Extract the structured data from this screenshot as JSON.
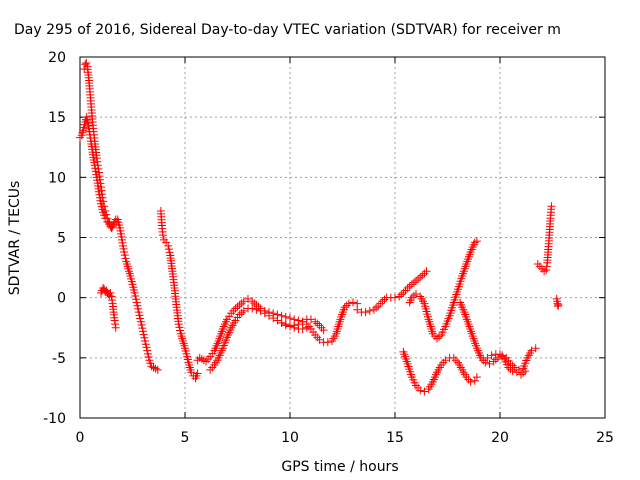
{
  "chart_data": {
    "type": "scatter",
    "title": "Day 295 of 2016, Sidereal Day-to-day VTEC variation (SDTVAR) for receiver m",
    "xlabel": "GPS time / hours",
    "ylabel": "SDTVAR / TECUs",
    "xlim": [
      0,
      25
    ],
    "ylim": [
      -10,
      20
    ],
    "xticks": [
      "0",
      "5",
      "10",
      "15",
      "20",
      "25"
    ],
    "yticks": [
      "-10",
      "-5",
      "0",
      "5",
      "10",
      "15",
      "20"
    ],
    "grid": true,
    "legend": "none",
    "marker": "plus",
    "color": "#ff0000",
    "series": [
      {
        "x": [
          0.0,
          0.08,
          0.15,
          0.25,
          0.32,
          0.38,
          0.45,
          0.52,
          0.6,
          0.7,
          0.8,
          0.9,
          1.0,
          1.1,
          1.2,
          1.3,
          1.4
        ],
        "y": [
          13.3,
          13.5,
          13.9,
          14.6,
          15.0,
          14.5,
          13.8,
          13.0,
          12.1,
          11.0,
          10.0,
          8.8,
          7.8,
          7.1,
          6.6,
          6.3,
          6.2
        ]
      },
      {
        "x": [
          0.2,
          0.25,
          0.3,
          0.35,
          0.4,
          0.45,
          0.5,
          0.55,
          0.6,
          0.65,
          0.7,
          0.75,
          0.8,
          0.85,
          0.9,
          0.95,
          1.0,
          1.05,
          1.1,
          1.15,
          1.2,
          1.25,
          1.3,
          1.35,
          1.4,
          1.45,
          1.5,
          1.55,
          1.6,
          1.65,
          1.7,
          1.75
        ],
        "y": [
          19.0,
          19.4,
          19.5,
          19.2,
          18.5,
          17.6,
          16.6,
          15.6,
          14.6,
          13.8,
          13.0,
          12.3,
          11.6,
          11.0,
          10.4,
          9.8,
          9.2,
          8.6,
          8.0,
          7.6,
          7.2,
          6.9,
          6.6,
          6.3,
          6.1,
          5.9,
          5.8,
          5.9,
          6.1,
          6.3,
          6.5,
          6.3
        ]
      },
      {
        "x": [
          1.0,
          1.05,
          1.1,
          1.15,
          1.2,
          1.25,
          1.3,
          1.35,
          1.4,
          1.45,
          1.5,
          1.55,
          1.6,
          1.65,
          1.7
        ],
        "y": [
          0.4,
          0.6,
          0.8,
          0.7,
          0.5,
          0.6,
          0.4,
          0.3,
          0.2,
          0.4,
          0.1,
          -0.5,
          -1.2,
          -1.9,
          -2.5
        ]
      },
      {
        "x": [
          1.8,
          1.9,
          2.0,
          2.1,
          2.2,
          2.3,
          2.4,
          2.5,
          2.6,
          2.7,
          2.8,
          2.9,
          3.0,
          3.1,
          3.2,
          3.3,
          3.4,
          3.5,
          3.6,
          3.7
        ],
        "y": [
          6.5,
          5.8,
          4.8,
          3.8,
          3.0,
          2.4,
          1.8,
          1.1,
          0.4,
          -0.4,
          -1.2,
          -2.0,
          -2.8,
          -3.6,
          -4.4,
          -5.2,
          -5.7,
          -5.8,
          -5.9,
          -6.0
        ]
      },
      {
        "x": [
          3.85,
          3.9,
          3.95,
          4.0,
          4.1,
          4.2,
          4.3,
          4.4,
          4.5,
          4.6,
          4.7,
          4.8,
          4.9,
          5.0,
          5.1,
          5.2,
          5.3,
          5.4,
          5.5,
          5.6
        ],
        "y": [
          7.2,
          6.0,
          5.2,
          4.8,
          4.6,
          4.3,
          3.5,
          2.2,
          0.8,
          -0.8,
          -2.2,
          -3.0,
          -3.6,
          -4.2,
          -4.9,
          -5.6,
          -6.2,
          -6.5,
          -6.7,
          -6.3
        ]
      },
      {
        "x": [
          5.6,
          5.7,
          5.8,
          5.9,
          6.0,
          6.1,
          6.2,
          6.4,
          6.6,
          6.8,
          7.0,
          7.2,
          7.4,
          7.6,
          7.8,
          8.0,
          8.2,
          8.4,
          8.6,
          8.8,
          9.0,
          9.2,
          9.4,
          9.6,
          9.8,
          10.0,
          10.2,
          10.4,
          10.6,
          10.8,
          11.0,
          11.2,
          11.4,
          11.6,
          11.8,
          12.0,
          12.2,
          12.4,
          12.6,
          12.8,
          13.0,
          13.2
        ],
        "y": [
          -5.2,
          -5.0,
          -5.1,
          -5.2,
          -5.3,
          -5.1,
          -4.9,
          -4.4,
          -3.6,
          -2.6,
          -1.8,
          -1.3,
          -0.9,
          -0.6,
          -0.3,
          -0.1,
          -0.3,
          -0.6,
          -0.9,
          -1.1,
          -1.2,
          -1.3,
          -1.4,
          -1.5,
          -1.6,
          -1.7,
          -1.8,
          -1.9,
          -2.0,
          -2.2,
          -2.6,
          -3.1,
          -3.5,
          -3.7,
          -3.7,
          -3.6,
          -3.0,
          -1.8,
          -0.8,
          -0.5,
          -0.4,
          -0.5
        ]
      },
      {
        "x": [
          6.2,
          6.4,
          6.6,
          6.8,
          7.0,
          7.2,
          7.4,
          7.6,
          7.8,
          8.0,
          8.2,
          8.4,
          8.6,
          8.8,
          9.0,
          9.2,
          9.4,
          9.6,
          9.8,
          10.0,
          10.2,
          10.4,
          10.6,
          10.8,
          11.0,
          11.2,
          11.4,
          11.6
        ],
        "y": [
          -6.0,
          -5.6,
          -5.0,
          -4.2,
          -3.3,
          -2.5,
          -1.9,
          -1.4,
          -1.1,
          -0.9,
          -0.9,
          -1.0,
          -1.1,
          -1.3,
          -1.5,
          -1.7,
          -1.9,
          -2.1,
          -2.2,
          -2.3,
          -2.3,
          -2.2,
          -2.0,
          -1.8,
          -1.8,
          -2.0,
          -2.3,
          -2.7
        ]
      },
      {
        "x": [
          9.6,
          9.8,
          10.0,
          10.2,
          10.4,
          10.6,
          10.8
        ],
        "y": [
          -2.1,
          -2.3,
          -2.4,
          -2.5,
          -2.6,
          -2.6,
          -2.5
        ]
      },
      {
        "x": [
          13.2,
          13.4,
          13.6,
          13.8,
          14.0,
          14.2,
          14.4,
          14.6,
          14.8,
          15.0,
          15.2,
          15.4,
          15.6,
          15.8,
          16.0,
          16.2,
          16.4,
          16.5
        ],
        "y": [
          -1.0,
          -1.2,
          -1.2,
          -1.1,
          -1.0,
          -0.7,
          -0.3,
          0.0,
          0.0,
          0.0,
          0.1,
          0.4,
          0.8,
          1.1,
          1.4,
          1.7,
          2.0,
          2.2
        ]
      },
      {
        "x": [
          15.7,
          15.8,
          16.0,
          16.2,
          16.4,
          16.6,
          16.8,
          17.0,
          17.2,
          17.4,
          17.6,
          17.8,
          18.0,
          18.2,
          18.4,
          18.6,
          18.8,
          18.9
        ],
        "y": [
          -0.4,
          0.0,
          0.3,
          0.1,
          -0.5,
          -1.8,
          -3.0,
          -3.4,
          -3.1,
          -2.4,
          -1.5,
          -0.4,
          0.7,
          1.8,
          2.8,
          3.8,
          4.6,
          4.7
        ]
      },
      {
        "x": [
          15.4,
          15.6,
          15.8,
          16.0,
          16.2,
          16.4,
          16.6,
          16.8,
          17.0,
          17.2,
          17.4,
          17.6,
          17.8,
          18.0,
          18.2,
          18.4,
          18.6,
          18.8,
          18.9
        ],
        "y": [
          -4.5,
          -5.5,
          -6.6,
          -7.3,
          -7.7,
          -7.8,
          -7.6,
          -7.0,
          -6.2,
          -5.6,
          -5.2,
          -5.0,
          -5.0,
          -5.4,
          -6.0,
          -6.6,
          -7.0,
          -6.9,
          -6.6
        ]
      },
      {
        "x": [
          18.1,
          18.3,
          18.5,
          18.7,
          18.9,
          19.1,
          19.3,
          19.5,
          19.7,
          19.9,
          20.1,
          20.3,
          20.5,
          20.7,
          20.9,
          21.1,
          21.3,
          21.5,
          21.7
        ],
        "y": [
          -0.4,
          -1.2,
          -2.2,
          -3.2,
          -4.2,
          -5.0,
          -5.4,
          -5.5,
          -5.3,
          -5.0,
          -4.8,
          -5.0,
          -5.5,
          -5.8,
          -6.0,
          -5.9,
          -5.0,
          -4.4,
          -4.2
        ]
      },
      {
        "x": [
          19.2,
          19.4,
          19.6,
          19.8,
          20.0,
          20.2,
          20.4,
          20.6,
          20.8,
          21.0,
          21.2
        ],
        "y": [
          -5.2,
          -5.0,
          -4.8,
          -4.7,
          -4.7,
          -5.1,
          -5.8,
          -6.1,
          -6.2,
          -6.4,
          -6.1
        ]
      },
      {
        "x": [
          21.8,
          21.9,
          22.0,
          22.1,
          22.2,
          22.25,
          22.3,
          22.35,
          22.4,
          22.45
        ],
        "y": [
          2.8,
          2.6,
          2.4,
          2.2,
          2.3,
          2.9,
          4.0,
          5.2,
          6.6,
          7.6
        ]
      },
      {
        "x": [
          22.7,
          22.72,
          22.74,
          22.76,
          22.78
        ],
        "y": [
          -0.1,
          -0.3,
          -0.5,
          -0.7,
          -0.6
        ]
      }
    ]
  }
}
